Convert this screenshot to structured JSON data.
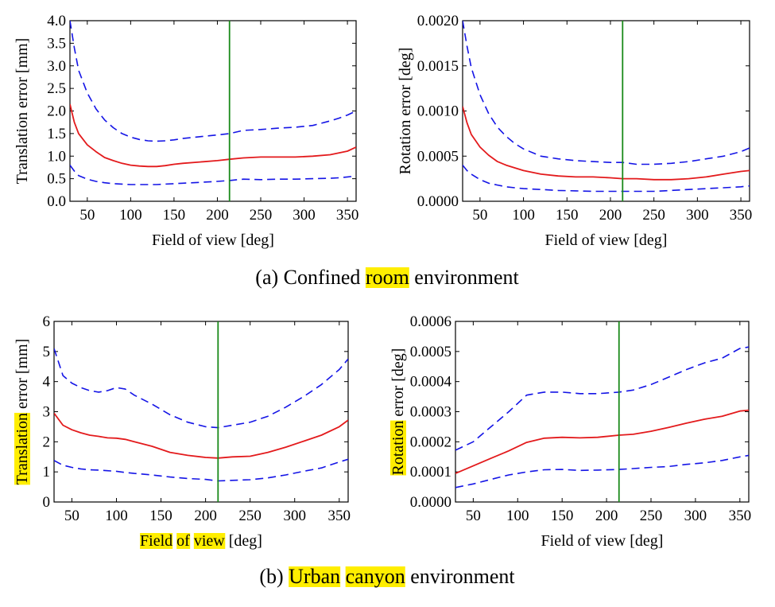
{
  "colors": {
    "mean": "#e31a1c",
    "bounds": "#1414e6",
    "marker": "#1a8a1a",
    "highlight": "#ffee00"
  },
  "captions": {
    "a": {
      "prefix": "(a) Confined ",
      "highlighted": "room",
      "suffix": " environment"
    },
    "b": {
      "prefix": "(b) ",
      "highlighted1": "Urban",
      "middle": " ",
      "highlighted2": "canyon",
      "suffix": " environment"
    }
  },
  "chart_data": [
    {
      "type": "line",
      "panel": "a-left",
      "xlabel": "Field of view [deg]",
      "ylabel": "Translation error [mm]",
      "xlim": [
        30,
        360
      ],
      "ylim": [
        0,
        4.0
      ],
      "xticks": [
        "50",
        "100",
        "150",
        "200",
        "250",
        "300",
        "350"
      ],
      "yticks": [
        "0.0",
        "0.5",
        "1.0",
        "1.5",
        "2.0",
        "2.5",
        "3.0",
        "3.5",
        "4.0"
      ],
      "vline_x": 214,
      "x": [
        30,
        35,
        40,
        50,
        60,
        70,
        80,
        90,
        100,
        110,
        120,
        130,
        140,
        150,
        160,
        180,
        200,
        214,
        230,
        250,
        270,
        290,
        310,
        330,
        340,
        350,
        360
      ],
      "series": [
        {
          "style": "dashed-upper",
          "values": [
            4.0,
            3.4,
            2.9,
            2.4,
            2.05,
            1.8,
            1.63,
            1.5,
            1.42,
            1.37,
            1.34,
            1.33,
            1.34,
            1.36,
            1.39,
            1.43,
            1.47,
            1.5,
            1.57,
            1.59,
            1.62,
            1.64,
            1.68,
            1.78,
            1.84,
            1.91,
            2.0
          ]
        },
        {
          "style": "solid-mean",
          "values": [
            2.15,
            1.75,
            1.5,
            1.25,
            1.1,
            0.97,
            0.9,
            0.84,
            0.8,
            0.78,
            0.77,
            0.77,
            0.79,
            0.82,
            0.84,
            0.87,
            0.9,
            0.93,
            0.96,
            0.98,
            0.98,
            0.98,
            1.0,
            1.03,
            1.07,
            1.11,
            1.2
          ]
        },
        {
          "style": "dashed-lower",
          "values": [
            0.8,
            0.67,
            0.57,
            0.49,
            0.44,
            0.41,
            0.39,
            0.38,
            0.37,
            0.37,
            0.37,
            0.37,
            0.38,
            0.39,
            0.4,
            0.42,
            0.44,
            0.46,
            0.49,
            0.48,
            0.49,
            0.49,
            0.5,
            0.51,
            0.52,
            0.54,
            0.56
          ]
        }
      ]
    },
    {
      "type": "line",
      "panel": "a-right",
      "xlabel": "Field of view [deg]",
      "ylabel": "Rotation error [deg]",
      "xlim": [
        30,
        360
      ],
      "ylim": [
        0,
        0.002
      ],
      "xticks": [
        "50",
        "100",
        "150",
        "200",
        "250",
        "300",
        "350"
      ],
      "yticks": [
        "0.0000",
        "0.0005",
        "0.0010",
        "0.0015",
        "0.0020"
      ],
      "vline_x": 214,
      "x": [
        30,
        35,
        40,
        50,
        60,
        70,
        80,
        90,
        100,
        120,
        140,
        160,
        180,
        200,
        214,
        230,
        250,
        270,
        290,
        310,
        330,
        350,
        360
      ],
      "series": [
        {
          "style": "dashed-upper",
          "values": [
            0.002,
            0.00172,
            0.00148,
            0.00118,
            0.00097,
            0.00082,
            0.00072,
            0.00064,
            0.00058,
            0.0005,
            0.00047,
            0.00045,
            0.00044,
            0.00043,
            0.00043,
            0.00041,
            0.00041,
            0.00042,
            0.00044,
            0.00047,
            0.0005,
            0.00055,
            0.00059
          ]
        },
        {
          "style": "solid-mean",
          "values": [
            0.00105,
            0.00087,
            0.00074,
            0.0006,
            0.00051,
            0.00044,
            0.0004,
            0.00037,
            0.00034,
            0.0003,
            0.00028,
            0.00027,
            0.00027,
            0.00026,
            0.00025,
            0.00025,
            0.00024,
            0.00024,
            0.00025,
            0.00027,
            0.0003,
            0.00033,
            0.00034
          ]
        },
        {
          "style": "dashed-lower",
          "values": [
            0.0004,
            0.00034,
            0.0003,
            0.00024,
            0.0002,
            0.00018,
            0.00016,
            0.00015,
            0.00014,
            0.00013,
            0.00012,
            0.000115,
            0.00011,
            0.00011,
            0.00011,
            0.00011,
            0.00011,
            0.00012,
            0.00013,
            0.00014,
            0.00015,
            0.00016,
            0.00017
          ]
        }
      ]
    },
    {
      "type": "line",
      "panel": "b-left",
      "xlabel": "Field of view [deg]",
      "ylabel": "Translation error [mm]",
      "xlim": [
        30,
        360
      ],
      "ylim": [
        0,
        6
      ],
      "xticks": [
        "50",
        "100",
        "150",
        "200",
        "250",
        "300",
        "350"
      ],
      "yticks": [
        "0",
        "1",
        "2",
        "3",
        "4",
        "5",
        "6"
      ],
      "vline_x": 214,
      "x": [
        30,
        40,
        50,
        60,
        70,
        80,
        90,
        100,
        110,
        120,
        140,
        160,
        180,
        200,
        214,
        230,
        250,
        270,
        290,
        310,
        330,
        350,
        360
      ],
      "series": [
        {
          "style": "dashed-upper",
          "values": [
            5.1,
            4.2,
            3.95,
            3.8,
            3.7,
            3.65,
            3.7,
            3.8,
            3.75,
            3.55,
            3.25,
            2.9,
            2.65,
            2.5,
            2.47,
            2.55,
            2.65,
            2.85,
            3.15,
            3.5,
            3.9,
            4.4,
            4.75
          ]
        },
        {
          "style": "solid-mean",
          "values": [
            2.95,
            2.55,
            2.4,
            2.3,
            2.22,
            2.18,
            2.13,
            2.12,
            2.08,
            2.0,
            1.85,
            1.65,
            1.55,
            1.48,
            1.46,
            1.5,
            1.52,
            1.65,
            1.82,
            2.02,
            2.22,
            2.5,
            2.72
          ]
        },
        {
          "style": "dashed-lower",
          "values": [
            1.38,
            1.22,
            1.15,
            1.1,
            1.07,
            1.06,
            1.04,
            1.02,
            0.98,
            0.95,
            0.9,
            0.83,
            0.78,
            0.75,
            0.7,
            0.72,
            0.74,
            0.8,
            0.9,
            1.02,
            1.13,
            1.33,
            1.42
          ]
        }
      ]
    },
    {
      "type": "line",
      "panel": "b-right",
      "xlabel": "Field of view [deg]",
      "ylabel": "Rotation error [deg]",
      "xlim": [
        30,
        360
      ],
      "ylim": [
        0,
        0.0006
      ],
      "xticks": [
        "50",
        "100",
        "150",
        "200",
        "250",
        "300",
        "350"
      ],
      "yticks": [
        "0.0000",
        "0.0001",
        "0.0002",
        "0.0003",
        "0.0004",
        "0.0005",
        "0.0006"
      ],
      "vline_x": 214,
      "x": [
        30,
        50,
        70,
        90,
        110,
        130,
        150,
        170,
        190,
        214,
        230,
        250,
        270,
        290,
        310,
        330,
        350,
        360
      ],
      "series": [
        {
          "style": "dashed-upper",
          "values": [
            0.000172,
            0.0002,
            0.00025,
            0.0003,
            0.000355,
            0.000365,
            0.000365,
            0.00036,
            0.00036,
            0.000365,
            0.000372,
            0.00039,
            0.000415,
            0.00044,
            0.000462,
            0.000478,
            0.00051,
            0.000515
          ]
        },
        {
          "style": "solid-mean",
          "values": [
            9.5e-05,
            0.00012,
            0.000145,
            0.00017,
            0.000198,
            0.000212,
            0.000215,
            0.000213,
            0.000215,
            0.000222,
            0.000225,
            0.000235,
            0.000248,
            0.000262,
            0.000275,
            0.000285,
            0.000302,
            0.000305
          ]
        },
        {
          "style": "dashed-lower",
          "values": [
            4.8e-05,
            6e-05,
            7.5e-05,
            9e-05,
            0.0001,
            0.000107,
            0.000108,
            0.000105,
            0.000106,
            0.000108,
            0.000111,
            0.000115,
            0.000118,
            0.000125,
            0.00013,
            0.000138,
            0.00015,
            0.000155
          ]
        }
      ]
    }
  ],
  "highlights": {
    "b-left-xlabel": [
      "Field",
      "of",
      "view"
    ],
    "b-left-ylabel": [
      "Translation"
    ],
    "b-right-ylabel": [
      "Rotation"
    ]
  }
}
